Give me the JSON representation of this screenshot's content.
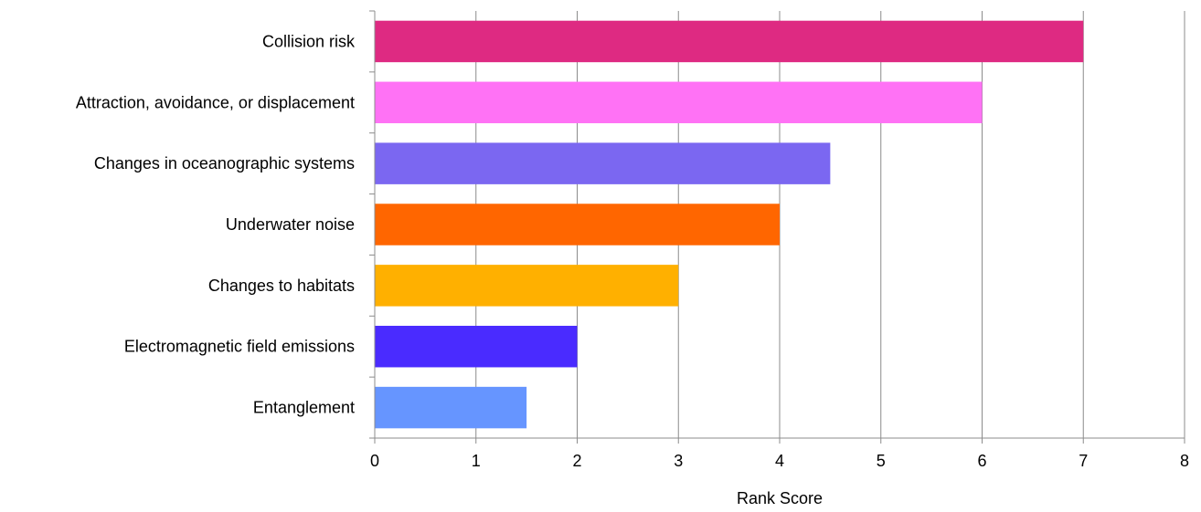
{
  "chart_data": {
    "type": "bar",
    "orientation": "horizontal",
    "categories": [
      "Collision risk",
      "Attraction, avoidance, or displacement",
      "Changes in oceanographic systems",
      "Underwater noise",
      "Changes to habitats",
      "Electromagnetic field emissions",
      "Entanglement"
    ],
    "values": [
      7,
      6,
      4.5,
      4,
      3,
      2,
      1.5
    ],
    "colors": [
      "#DE2A82",
      "#FF72F5",
      "#7B67F1",
      "#FF6600",
      "#FFB000",
      "#4A2BFF",
      "#6695FF"
    ],
    "title": "",
    "xlabel": "Rank Score",
    "ylabel": "",
    "xlim": [
      0,
      8
    ],
    "x_ticks": [
      "0",
      "1",
      "2",
      "3",
      "4",
      "5",
      "6",
      "7",
      "8"
    ],
    "grid": "vertical",
    "legend": "none"
  }
}
